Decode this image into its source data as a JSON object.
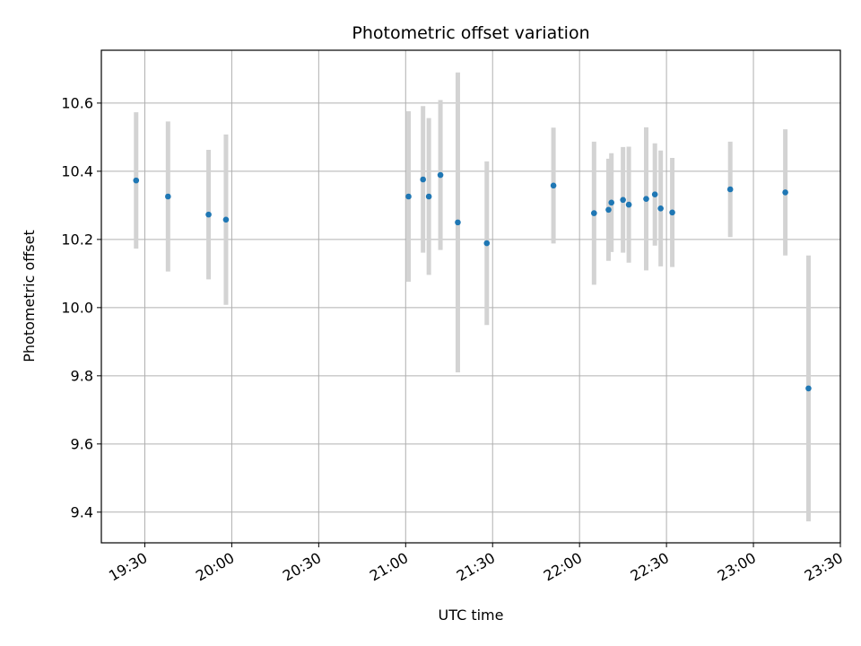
{
  "chart_data": {
    "type": "scatter",
    "title": "Photometric offset variation",
    "xlabel": "UTC time",
    "ylabel": "Photometric offset",
    "x_axis_type": "time",
    "xlim": [
      "19:15",
      "23:30"
    ],
    "ylim": [
      9.31,
      10.755
    ],
    "x_ticks": [
      "19:30",
      "20:00",
      "20:30",
      "21:00",
      "21:30",
      "22:00",
      "22:30",
      "23:00",
      "23:30"
    ],
    "y_ticks": [
      9.4,
      9.6,
      9.8,
      10.0,
      10.2,
      10.4,
      10.6
    ],
    "y_tick_labels": [
      "9.4",
      "9.6",
      "9.8",
      "10.0",
      "10.2",
      "10.4",
      "10.6"
    ],
    "grid": true,
    "point_color": "#1f77b4",
    "errorbar_color": "#d3d3d3",
    "points": [
      {
        "x": "19:27",
        "y": 10.373,
        "err": 0.2
      },
      {
        "x": "19:38",
        "y": 10.326,
        "err": 0.22
      },
      {
        "x": "19:52",
        "y": 10.273,
        "err": 0.19
      },
      {
        "x": "19:58",
        "y": 10.258,
        "err": 0.25
      },
      {
        "x": "21:01",
        "y": 10.326,
        "err": 0.25
      },
      {
        "x": "21:06",
        "y": 10.376,
        "err": 0.215
      },
      {
        "x": "21:08",
        "y": 10.326,
        "err": 0.23
      },
      {
        "x": "21:12",
        "y": 10.389,
        "err": 0.22
      },
      {
        "x": "21:18",
        "y": 10.25,
        "err": 0.44
      },
      {
        "x": "21:28",
        "y": 10.189,
        "err": 0.24
      },
      {
        "x": "21:51",
        "y": 10.358,
        "err": 0.17
      },
      {
        "x": "22:05",
        "y": 10.277,
        "err": 0.21
      },
      {
        "x": "22:10",
        "y": 10.287,
        "err": 0.15
      },
      {
        "x": "22:11",
        "y": 10.308,
        "err": 0.145
      },
      {
        "x": "22:15",
        "y": 10.316,
        "err": 0.155
      },
      {
        "x": "22:17",
        "y": 10.302,
        "err": 0.17
      },
      {
        "x": "22:23",
        "y": 10.319,
        "err": 0.21
      },
      {
        "x": "22:26",
        "y": 10.332,
        "err": 0.15
      },
      {
        "x": "22:28",
        "y": 10.291,
        "err": 0.17
      },
      {
        "x": "22:32",
        "y": 10.279,
        "err": 0.16
      },
      {
        "x": "22:52",
        "y": 10.347,
        "err": 0.14
      },
      {
        "x": "23:11",
        "y": 10.338,
        "err": 0.185
      },
      {
        "x": "23:19",
        "y": 9.763,
        "err": 0.39
      }
    ]
  }
}
